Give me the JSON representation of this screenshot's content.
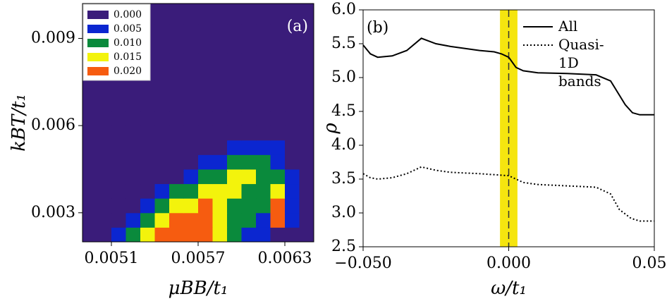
{
  "chart_data": [
    {
      "type": "contour",
      "label": "(a)",
      "xlabel": "μBB/t₁",
      "ylabel": "kBT/t₁",
      "xlim": [
        0.0049,
        0.0065
      ],
      "ylim": [
        0.002,
        0.0102
      ],
      "xticks": [
        {
          "value": 0.0051,
          "label": "0.0051"
        },
        {
          "value": 0.0057,
          "label": "0.0057"
        },
        {
          "value": 0.0063,
          "label": "0.0063"
        }
      ],
      "yticks": [
        {
          "value": 0.003,
          "label": "0.003"
        },
        {
          "value": 0.006,
          "label": "0.006"
        },
        {
          "value": 0.009,
          "label": "0.009"
        }
      ],
      "levels": [
        {
          "value": 0,
          "label": "0.000"
        },
        {
          "value": 0.005,
          "label": "0.005"
        },
        {
          "value": 0.01,
          "label": "0.010"
        },
        {
          "value": 0.015,
          "label": "0.015"
        },
        {
          "value": 0.02,
          "label": "0.020"
        }
      ],
      "colors": [
        "#3a1c7a",
        "#0b26d0",
        "#0a8a3c",
        "#f3f30c",
        "#f65c10"
      ],
      "x": [
        0.00495,
        0.00505,
        0.00515,
        0.00525,
        0.00535,
        0.00545,
        0.00555,
        0.00565,
        0.00575,
        0.00585,
        0.00595,
        0.00605,
        0.00615,
        0.00625,
        0.00635,
        0.00645
      ],
      "y": [
        0.00225,
        0.00275,
        0.00325,
        0.00375,
        0.00425,
        0.00475,
        0.00525,
        0.00575,
        0.00625,
        0.00675,
        0.00725,
        0.00775,
        0.00825,
        0.00875,
        0.00925,
        0.00975
      ],
      "z": [
        [
          0,
          0,
          0.006,
          0.012,
          0.018,
          0.02,
          0.021,
          0.02,
          0.021,
          0.018,
          0.012,
          0.008,
          0.006,
          0.004,
          0,
          0
        ],
        [
          0,
          0,
          0,
          0.006,
          0.012,
          0.018,
          0.02,
          0.021,
          0.02,
          0.016,
          0.012,
          0.01,
          0.008,
          0.02,
          0.006,
          0
        ],
        [
          0,
          0,
          0,
          0,
          0.006,
          0.012,
          0.016,
          0.018,
          0.02,
          0.017,
          0.014,
          0.01,
          0.012,
          0.021,
          0.008,
          0
        ],
        [
          0,
          0,
          0,
          0,
          0,
          0.005,
          0.01,
          0.014,
          0.016,
          0.017,
          0.016,
          0.012,
          0.014,
          0.016,
          0.006,
          0
        ],
        [
          0,
          0,
          0,
          0,
          0,
          0,
          0,
          0.006,
          0.01,
          0.013,
          0.015,
          0.015,
          0.013,
          0.012,
          0.005,
          0
        ],
        [
          0,
          0,
          0,
          0,
          0,
          0,
          0,
          0,
          0.005,
          0.008,
          0.011,
          0.012,
          0.01,
          0.008,
          0.004,
          0
        ],
        [
          0,
          0,
          0,
          0,
          0,
          0,
          0,
          0,
          0,
          0.004,
          0.006,
          0.007,
          0.006,
          0.006,
          0.003,
          0
        ],
        [
          0,
          0,
          0,
          0,
          0,
          0,
          0,
          0,
          0,
          0,
          0.003,
          0.004,
          0.004,
          0.004,
          0.002,
          0
        ],
        [
          0,
          0,
          0,
          0,
          0,
          0,
          0,
          0,
          0,
          0,
          0,
          0,
          0.002,
          0.003,
          0.002,
          0
        ],
        [
          0,
          0,
          0,
          0,
          0,
          0,
          0,
          0,
          0,
          0,
          0,
          0,
          0,
          0,
          0,
          0
        ],
        [
          0,
          0,
          0,
          0,
          0,
          0,
          0,
          0,
          0,
          0,
          0,
          0,
          0,
          0,
          0,
          0
        ],
        [
          0,
          0,
          0,
          0,
          0,
          0,
          0,
          0,
          0,
          0,
          0,
          0,
          0,
          0,
          0,
          0
        ],
        [
          0,
          0,
          0,
          0,
          0,
          0,
          0,
          0,
          0,
          0,
          0,
          0,
          0,
          0,
          0,
          0
        ],
        [
          0,
          0,
          0,
          0,
          0,
          0,
          0,
          0,
          0,
          0,
          0,
          0,
          0,
          0,
          0,
          0
        ],
        [
          0,
          0,
          0,
          0,
          0,
          0,
          0,
          0,
          0,
          0,
          0,
          0,
          0,
          0,
          0,
          0
        ],
        [
          0,
          0,
          0,
          0,
          0,
          0,
          0,
          0,
          0,
          0,
          0,
          0,
          0,
          0,
          0,
          0
        ]
      ]
    },
    {
      "type": "line",
      "label": "(b)",
      "xlabel": "ω/t₁",
      "ylabel": "ρ",
      "xlim": [
        -0.05,
        0.05
      ],
      "ylim": [
        2.5,
        6.0
      ],
      "xticks": [
        {
          "value": -0.05,
          "label": "−0.050"
        },
        {
          "value": 0,
          "label": "0.000"
        },
        {
          "value": 0.05,
          "label": "0.050"
        }
      ],
      "yticks": [
        2.5,
        {
          "value": 3,
          "label": "3.0"
        },
        3.5,
        {
          "value": 4,
          "label": "4.0"
        },
        4.5,
        {
          "value": 5,
          "label": "5.0"
        },
        5.5,
        {
          "value": 6,
          "label": "6.0"
        }
      ],
      "band": [
        -0.003,
        0.003
      ],
      "band_color": "#f5e50f",
      "vline": 0,
      "series": [
        {
          "name": "All",
          "style": "solid",
          "color": "#000000",
          "x": [
            -0.05,
            -0.0475,
            -0.045,
            -0.04,
            -0.035,
            -0.03,
            -0.025,
            -0.02,
            -0.015,
            -0.01,
            -0.005,
            -0.0025,
            0,
            0.0025,
            0.005,
            0.01,
            0.02,
            0.03,
            0.035,
            0.04,
            0.0425,
            0.045,
            0.05
          ],
          "values": [
            5.48,
            5.35,
            5.3,
            5.32,
            5.4,
            5.58,
            5.5,
            5.46,
            5.43,
            5.4,
            5.38,
            5.35,
            5.3,
            5.15,
            5.1,
            5.07,
            5.06,
            5.04,
            4.95,
            4.6,
            4.48,
            4.45,
            4.45
          ]
        },
        {
          "name": "Quasi-1D bands",
          "style": "dotted",
          "color": "#000000",
          "x": [
            -0.05,
            -0.0475,
            -0.045,
            -0.04,
            -0.035,
            -0.03,
            -0.025,
            -0.02,
            -0.01,
            0,
            0.005,
            0.01,
            0.02,
            0.03,
            0.035,
            0.038,
            0.042,
            0.045,
            0.05
          ],
          "values": [
            3.58,
            3.52,
            3.5,
            3.52,
            3.58,
            3.68,
            3.63,
            3.6,
            3.58,
            3.55,
            3.45,
            3.42,
            3.4,
            3.38,
            3.28,
            3.05,
            2.92,
            2.88,
            2.88
          ]
        }
      ]
    }
  ]
}
